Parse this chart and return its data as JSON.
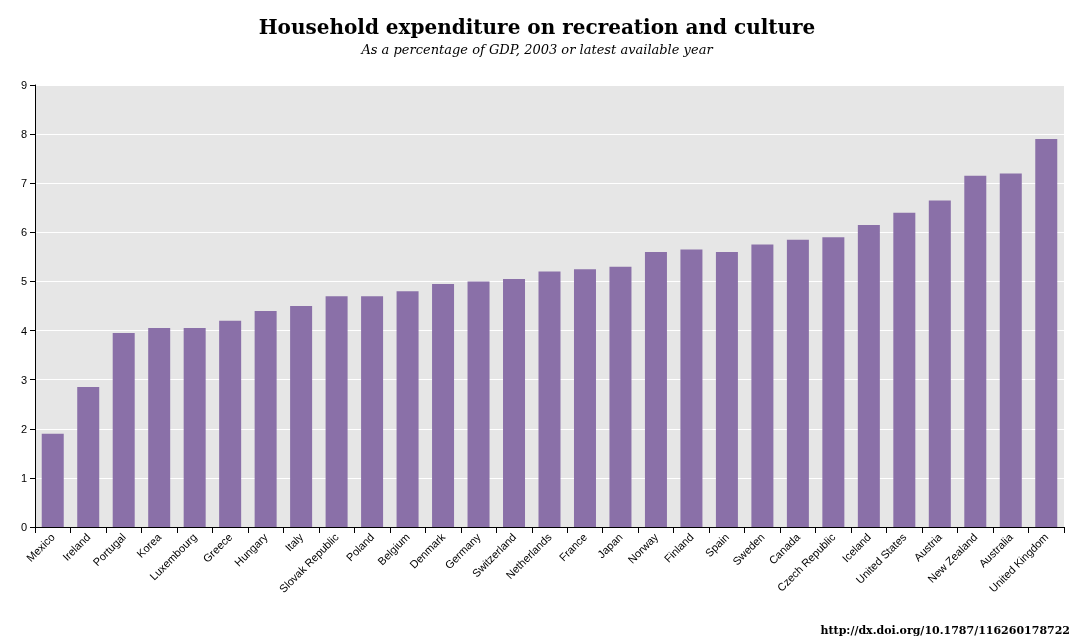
{
  "chart_data": {
    "type": "bar",
    "title": "Household expenditure on recreation and culture",
    "subtitle": "As a percentage of GDP, 2003 or latest available year",
    "categories": [
      "Mexico",
      "Ireland",
      "Portugal",
      "Korea",
      "Luxembourg",
      "Greece",
      "Hungary",
      "Italy",
      "Slovak Republic",
      "Poland",
      "Belgium",
      "Denmark",
      "Germany",
      "Switzerland",
      "Netherlands",
      "France",
      "Japan",
      "Norway",
      "Finland",
      "Spain",
      "Sweden",
      "Canada",
      "Czech Republic",
      "Iceland",
      "United States",
      "Austria",
      "New Zealand",
      "Australia",
      "United Kingdom"
    ],
    "values": [
      1.9,
      2.85,
      3.95,
      4.05,
      4.05,
      4.2,
      4.4,
      4.5,
      4.7,
      4.7,
      4.8,
      4.95,
      5.0,
      5.05,
      5.2,
      5.25,
      5.3,
      5.6,
      5.65,
      5.6,
      5.75,
      5.85,
      5.9,
      6.15,
      6.4,
      6.65,
      7.15,
      7.2,
      7.9
    ],
    "color": "#8a70a8",
    "ylim": [
      0,
      9
    ],
    "yticks": [
      0,
      1,
      2,
      3,
      4,
      5,
      6,
      7,
      8,
      9
    ],
    "grid": "y",
    "annotations": [
      "http://dx.doi.org/10.1787/116260178722"
    ]
  }
}
